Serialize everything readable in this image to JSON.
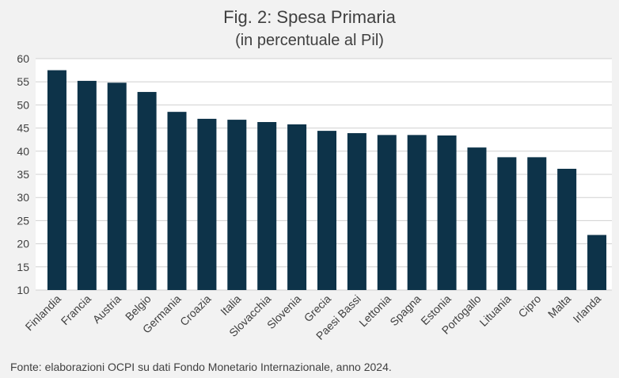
{
  "chart_data": {
    "type": "bar",
    "title": "Fig. 2: Spesa Primaria",
    "subtitle": "(in percentuale al Pil)",
    "xlabel": "",
    "ylabel": "",
    "ylim": [
      10,
      60
    ],
    "yticks": [
      10,
      15,
      20,
      25,
      30,
      35,
      40,
      45,
      50,
      55,
      60
    ],
    "grid": true,
    "categories": [
      "Finlandia",
      "Francia",
      "Austria",
      "Belgio",
      "Germania",
      "Croazia",
      "Italia",
      "Slovacchia",
      "Slovenia",
      "Grecia",
      "Paesi Bassi",
      "Lettonia",
      "Spagna",
      "Estonia",
      "Portogallo",
      "Lituania",
      "Cipro",
      "Malta",
      "Irlanda"
    ],
    "values": [
      57.5,
      55.2,
      54.8,
      52.8,
      48.5,
      47.0,
      46.8,
      46.3,
      45.8,
      44.4,
      43.9,
      43.5,
      43.5,
      43.4,
      40.8,
      38.7,
      38.7,
      36.2,
      21.9
    ],
    "bar_color": "#0d3349",
    "grid_color": "#d0d0d0",
    "source": "Fonte: elaborazioni OCPI su dati Fondo Monetario Internazionale, anno 2024."
  }
}
